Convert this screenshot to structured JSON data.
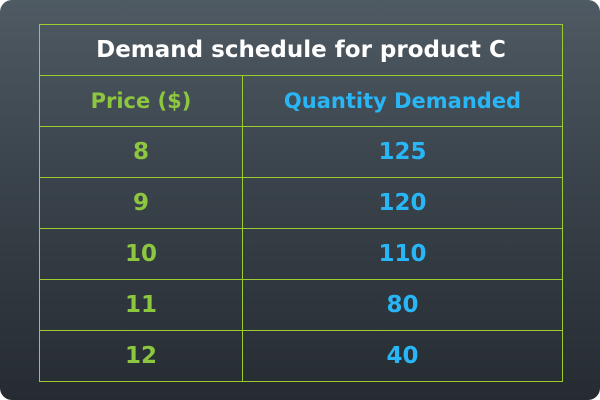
{
  "chart_data": {
    "type": "table",
    "title": "Demand schedule for product C",
    "columns": [
      "Price ($)",
      "Quantity Demanded"
    ],
    "rows": [
      {
        "price": "8",
        "quantity": "125"
      },
      {
        "price": "9",
        "quantity": "120"
      },
      {
        "price": "10",
        "quantity": "110"
      },
      {
        "price": "11",
        "quantity": "80"
      },
      {
        "price": "12",
        "quantity": "40"
      }
    ]
  },
  "colors": {
    "price_green": "#8dc63f",
    "quantity_blue": "#29b6f6",
    "border": "#9ccc2e",
    "title_white": "#ffffff"
  }
}
